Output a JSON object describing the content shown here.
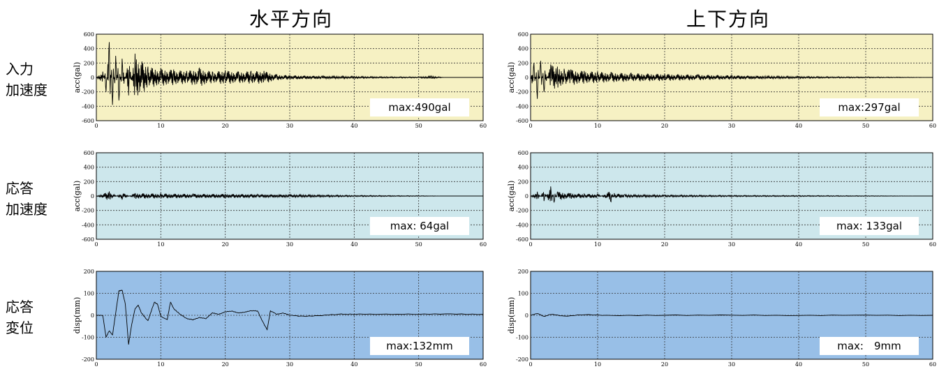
{
  "columns": {
    "horizontal": "水平方向",
    "vertical": "上下方向"
  },
  "rows": [
    {
      "line1": "入力",
      "line2": "加速度"
    },
    {
      "line1": "応答",
      "line2": "加速度"
    },
    {
      "line1": "応答",
      "line2": "変位"
    }
  ],
  "colors": {
    "input_bg": "#f6f1c3",
    "response_acc_bg": "#cde7ec",
    "response_disp_bg": "#98bfe7",
    "trace": "#000000"
  },
  "chart_data": [
    {
      "type": "line",
      "column": "水平方向",
      "row": "入力加速度",
      "ylabel": "acc(gal)",
      "xlim": [
        0,
        60
      ],
      "ylim": [
        -600,
        600
      ],
      "yticks": [
        600,
        400,
        200,
        0,
        -200,
        -400,
        -600
      ],
      "xticks": [
        0,
        10,
        20,
        30,
        40,
        50,
        60
      ],
      "grid": true,
      "annotation": "max:490gal",
      "series": [
        {
          "x": [
            0,
            1,
            1.5,
            2,
            2.5,
            3,
            3.5,
            4,
            5,
            6,
            8,
            10,
            12,
            14,
            16,
            18,
            20,
            22,
            24,
            26,
            28,
            30,
            35,
            40,
            45,
            50,
            52,
            54,
            56,
            58,
            60
          ],
          "values": [
            0,
            80,
            -200,
            490,
            -380,
            300,
            -320,
            260,
            -250,
            330,
            150,
            120,
            110,
            90,
            130,
            80,
            100,
            80,
            90,
            90,
            40,
            30,
            20,
            15,
            10,
            8,
            20,
            0,
            0,
            0,
            0
          ]
        }
      ]
    },
    {
      "type": "line",
      "column": "上下方向",
      "row": "入力加速度",
      "ylabel": "acc(gal)",
      "xlim": [
        0,
        60
      ],
      "ylim": [
        -600,
        600
      ],
      "yticks": [
        600,
        400,
        200,
        0,
        -200,
        -400,
        -600
      ],
      "xticks": [
        0,
        10,
        20,
        30,
        40,
        50,
        60
      ],
      "grid": true,
      "annotation": "max:297gal",
      "series": [
        {
          "x": [
            0,
            0.5,
            1,
            1.5,
            2,
            3,
            4,
            5,
            6,
            8,
            10,
            12,
            15,
            20,
            25,
            30,
            35,
            40,
            45,
            50,
            55,
            60
          ],
          "values": [
            0,
            200,
            -297,
            230,
            -200,
            180,
            150,
            120,
            110,
            90,
            80,
            70,
            60,
            50,
            40,
            30,
            20,
            15,
            10,
            8,
            5,
            0
          ]
        }
      ]
    },
    {
      "type": "line",
      "column": "水平方向",
      "row": "応答加速度",
      "ylabel": "acc(gal)",
      "xlim": [
        0,
        60
      ],
      "ylim": [
        -600,
        600
      ],
      "yticks": [
        600,
        400,
        200,
        0,
        -200,
        -400,
        -600
      ],
      "xticks": [
        0,
        10,
        20,
        30,
        40,
        50,
        60
      ],
      "grid": true,
      "annotation": "max: 64gal",
      "series": [
        {
          "x": [
            0,
            2,
            4,
            6,
            10,
            15,
            20,
            25,
            30,
            40,
            50,
            54,
            60
          ],
          "values": [
            0,
            64,
            -50,
            40,
            35,
            30,
            30,
            25,
            20,
            10,
            5,
            0,
            0
          ]
        }
      ]
    },
    {
      "type": "line",
      "column": "上下方向",
      "row": "応答加速度",
      "ylabel": "acc(gal)",
      "xlim": [
        0,
        60
      ],
      "ylim": [
        -600,
        600
      ],
      "yticks": [
        600,
        400,
        200,
        0,
        -200,
        -400,
        -600
      ],
      "xticks": [
        0,
        10,
        20,
        30,
        40,
        50,
        60
      ],
      "grid": true,
      "annotation": "max: 133gal",
      "series": [
        {
          "x": [
            0,
            1,
            2,
            3,
            3.5,
            4,
            6,
            8,
            10,
            12,
            12.5,
            14,
            20,
            30,
            40,
            50,
            58,
            60
          ],
          "values": [
            0,
            60,
            -70,
            133,
            -90,
            60,
            40,
            30,
            30,
            -80,
            40,
            20,
            15,
            10,
            8,
            5,
            0,
            0
          ]
        }
      ]
    },
    {
      "type": "line",
      "column": "水平方向",
      "row": "応答変位",
      "ylabel": "disp(mm)",
      "xlim": [
        0,
        60
      ],
      "ylim": [
        -200,
        200
      ],
      "yticks": [
        200,
        100,
        0,
        -100,
        -200
      ],
      "xticks": [
        0,
        10,
        20,
        30,
        40,
        50,
        60
      ],
      "grid": true,
      "annotation": "max:132mm",
      "series": [
        {
          "x": [
            0,
            1,
            1.5,
            2,
            2.5,
            3,
            3.5,
            4,
            4.5,
            5,
            5.5,
            6,
            6.5,
            7,
            8,
            9,
            9.5,
            10,
            11,
            11.5,
            12,
            13,
            14,
            15,
            16,
            17,
            18,
            19,
            20,
            21,
            22,
            23,
            24,
            25,
            26,
            26.5,
            27,
            28,
            29,
            30,
            32,
            35,
            38,
            40,
            45,
            50,
            55,
            60
          ],
          "values": [
            0,
            0,
            -100,
            -70,
            -90,
            10,
            110,
            115,
            50,
            -132,
            -40,
            30,
            45,
            10,
            -25,
            60,
            50,
            -5,
            -20,
            60,
            30,
            5,
            -15,
            -20,
            -10,
            -15,
            10,
            5,
            15,
            20,
            10,
            15,
            20,
            20,
            -40,
            -65,
            20,
            5,
            10,
            0,
            -5,
            0,
            5,
            5,
            5,
            5,
            5,
            5
          ]
        }
      ]
    },
    {
      "type": "line",
      "column": "上下方向",
      "row": "応答変位",
      "ylabel": "disp(mm)",
      "xlim": [
        0,
        60
      ],
      "ylim": [
        -200,
        200
      ],
      "yticks": [
        200,
        100,
        0,
        -100,
        -200
      ],
      "xticks": [
        0,
        10,
        20,
        30,
        40,
        50,
        60
      ],
      "grid": true,
      "annotation": "max:　9mm",
      "series": [
        {
          "x": [
            0,
            1,
            2,
            3,
            5,
            8,
            12,
            20,
            30,
            40,
            50,
            60
          ],
          "values": [
            0,
            9,
            -6,
            5,
            -4,
            3,
            -2,
            1,
            0,
            0,
            0,
            0
          ]
        }
      ]
    }
  ]
}
